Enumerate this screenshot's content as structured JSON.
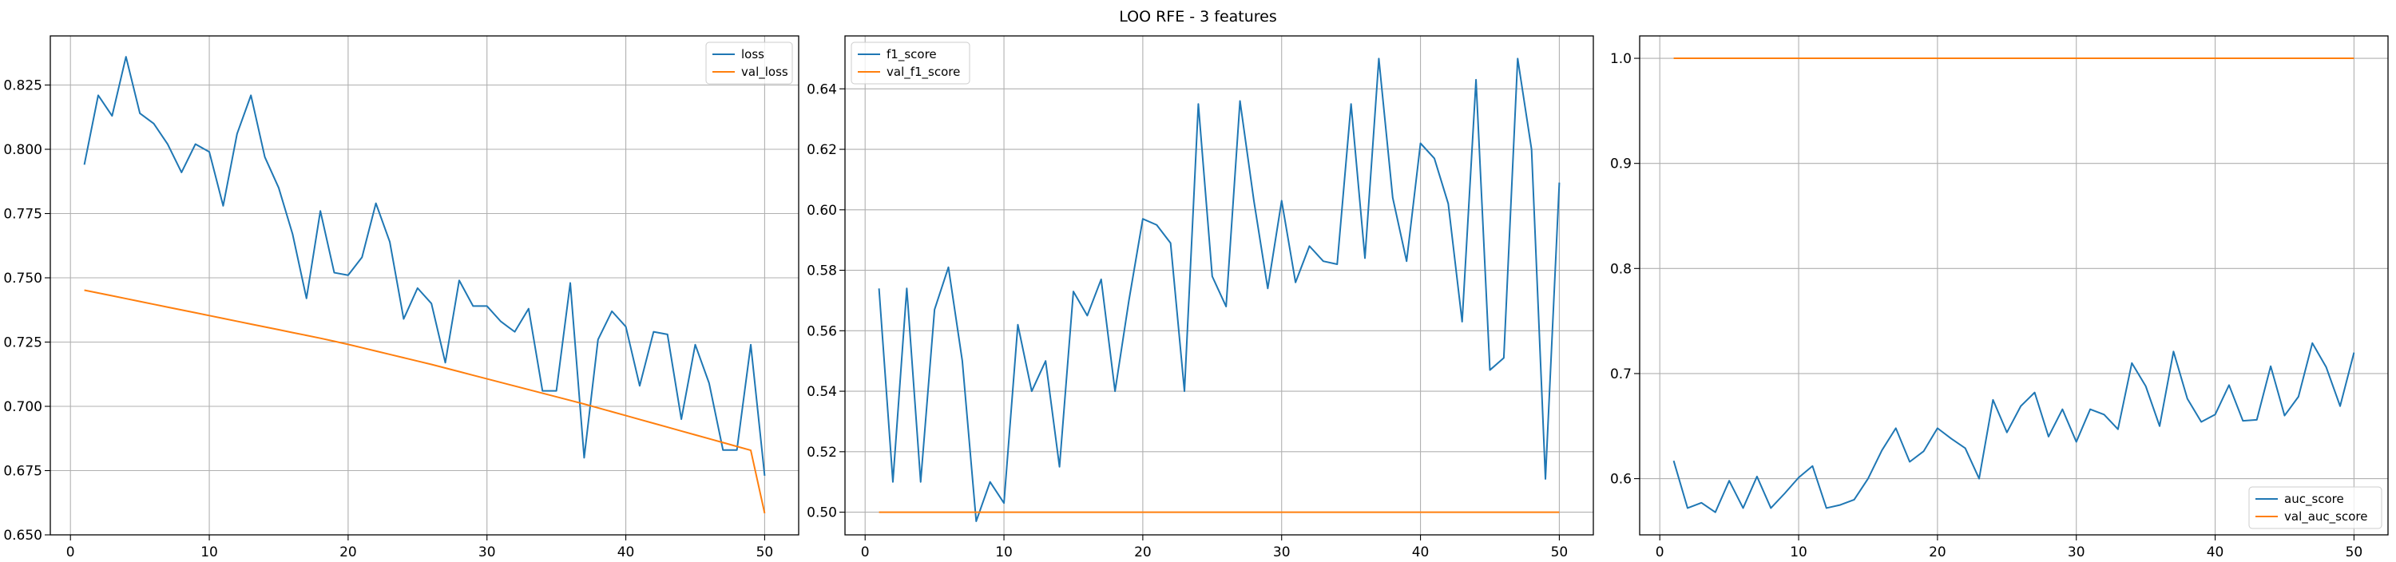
{
  "figure": {
    "suptitle": "LOO RFE - 3 features"
  },
  "colors": {
    "train": "#1f77b4",
    "val": "#ff7f0e",
    "grid": "#b0b0b0",
    "axis": "#000000"
  },
  "chart_data": [
    {
      "type": "line",
      "title": "",
      "xlabel": "",
      "ylabel": "",
      "xlim": [
        -1.45,
        52.45
      ],
      "ylim": [
        0.65,
        0.8441
      ],
      "xticks": [
        0,
        10,
        20,
        30,
        40,
        50
      ],
      "xtick_labels": [
        "0",
        "10",
        "20",
        "30",
        "40",
        "50"
      ],
      "yticks": [
        0.65,
        0.675,
        0.7,
        0.725,
        0.75,
        0.775,
        0.8,
        0.825
      ],
      "ytick_labels": [
        "0.650",
        "0.675",
        "0.700",
        "0.725",
        "0.750",
        "0.775",
        "0.800",
        "0.825"
      ],
      "grid": true,
      "legend_position": "upper right",
      "x": [
        1,
        2,
        3,
        4,
        5,
        6,
        7,
        8,
        9,
        10,
        11,
        12,
        13,
        14,
        15,
        16,
        17,
        18,
        19,
        20,
        21,
        22,
        23,
        24,
        25,
        26,
        27,
        28,
        29,
        30,
        31,
        32,
        33,
        34,
        35,
        36,
        37,
        38,
        39,
        40,
        41,
        42,
        43,
        44,
        45,
        46,
        47,
        48,
        49,
        50
      ],
      "series": [
        {
          "name": "loss",
          "color": "#1f77b4",
          "values": [
            0.794,
            0.821,
            0.813,
            0.836,
            0.814,
            0.81,
            0.802,
            0.791,
            0.802,
            0.799,
            0.778,
            0.806,
            0.821,
            0.797,
            0.785,
            0.767,
            0.742,
            0.776,
            0.752,
            0.751,
            0.758,
            0.779,
            0.764,
            0.734,
            0.746,
            0.74,
            0.717,
            0.749,
            0.739,
            0.739,
            0.733,
            0.729,
            0.738,
            0.706,
            0.706,
            0.748,
            0.68,
            0.726,
            0.737,
            0.731,
            0.708,
            0.729,
            0.728,
            0.695,
            0.724,
            0.709,
            0.683,
            0.683,
            0.724,
            0.673
          ]
        },
        {
          "name": "val_loss",
          "color": "#ff7f0e",
          "values": [
            0.7452,
            0.7441,
            0.743,
            0.7419,
            0.7408,
            0.7397,
            0.7386,
            0.7375,
            0.7364,
            0.7353,
            0.7342,
            0.7331,
            0.732,
            0.7309,
            0.7298,
            0.7287,
            0.7276,
            0.7265,
            0.7253,
            0.7241,
            0.7228,
            0.7215,
            0.7202,
            0.7189,
            0.7176,
            0.7163,
            0.7149,
            0.7135,
            0.7121,
            0.7107,
            0.7093,
            0.7079,
            0.7065,
            0.7051,
            0.7037,
            0.7023,
            0.7009,
            0.6994,
            0.6979,
            0.6964,
            0.6949,
            0.6934,
            0.6919,
            0.6904,
            0.6889,
            0.6874,
            0.6859,
            0.6844,
            0.6829,
            0.6584
          ]
        }
      ]
    },
    {
      "type": "line",
      "title": "",
      "xlabel": "",
      "ylabel": "",
      "xlim": [
        -1.45,
        52.45
      ],
      "ylim": [
        0.4925,
        0.6575
      ],
      "xticks": [
        0,
        10,
        20,
        30,
        40,
        50
      ],
      "xtick_labels": [
        "0",
        "10",
        "20",
        "30",
        "40",
        "50"
      ],
      "yticks": [
        0.5,
        0.52,
        0.54,
        0.56,
        0.58,
        0.6,
        0.62,
        0.64
      ],
      "ytick_labels": [
        "0.50",
        "0.52",
        "0.54",
        "0.56",
        "0.58",
        "0.60",
        "0.62",
        "0.64"
      ],
      "grid": true,
      "legend_position": "upper left",
      "x": [
        1,
        2,
        3,
        4,
        5,
        6,
        7,
        8,
        9,
        10,
        11,
        12,
        13,
        14,
        15,
        16,
        17,
        18,
        19,
        20,
        21,
        22,
        23,
        24,
        25,
        26,
        27,
        28,
        29,
        30,
        31,
        32,
        33,
        34,
        35,
        36,
        37,
        38,
        39,
        40,
        41,
        42,
        43,
        44,
        45,
        46,
        47,
        48,
        49,
        50
      ],
      "series": [
        {
          "name": "f1_score",
          "color": "#1f77b4",
          "values": [
            0.574,
            0.51,
            0.574,
            0.51,
            0.567,
            0.581,
            0.55,
            0.497,
            0.51,
            0.503,
            0.562,
            0.54,
            0.55,
            0.515,
            0.573,
            0.565,
            0.577,
            0.54,
            0.57,
            0.597,
            0.595,
            0.589,
            0.54,
            0.635,
            0.578,
            0.568,
            0.636,
            0.603,
            0.574,
            0.603,
            0.576,
            0.588,
            0.583,
            0.582,
            0.635,
            0.584,
            0.65,
            0.604,
            0.583,
            0.622,
            0.617,
            0.602,
            0.563,
            0.643,
            0.547,
            0.551,
            0.65,
            0.62,
            0.511,
            0.609
          ]
        },
        {
          "name": "val_f1_score",
          "color": "#ff7f0e",
          "values": [
            0.5,
            0.5,
            0.5,
            0.5,
            0.5,
            0.5,
            0.5,
            0.5,
            0.5,
            0.5,
            0.5,
            0.5,
            0.5,
            0.5,
            0.5,
            0.5,
            0.5,
            0.5,
            0.5,
            0.5,
            0.5,
            0.5,
            0.5,
            0.5,
            0.5,
            0.5,
            0.5,
            0.5,
            0.5,
            0.5,
            0.5,
            0.5,
            0.5,
            0.5,
            0.5,
            0.5,
            0.5,
            0.5,
            0.5,
            0.5,
            0.5,
            0.5,
            0.5,
            0.5,
            0.5,
            0.5,
            0.5,
            0.5,
            0.5,
            0.5
          ]
        }
      ]
    },
    {
      "type": "line",
      "title": "",
      "xlabel": "",
      "ylabel": "",
      "xlim": [
        -1.45,
        52.45
      ],
      "ylim": [
        0.5465,
        1.0213
      ],
      "xticks": [
        0,
        10,
        20,
        30,
        40,
        50
      ],
      "xtick_labels": [
        "0",
        "10",
        "20",
        "30",
        "40",
        "50"
      ],
      "yticks": [
        0.6,
        0.7,
        0.8,
        0.9,
        1.0
      ],
      "ytick_labels": [
        "0.6",
        "0.7",
        "0.8",
        "0.9",
        "1.0"
      ],
      "grid": true,
      "legend_position": "lower right",
      "x": [
        1,
        2,
        3,
        4,
        5,
        6,
        7,
        8,
        9,
        10,
        11,
        12,
        13,
        14,
        15,
        16,
        17,
        18,
        19,
        20,
        21,
        22,
        23,
        24,
        25,
        26,
        27,
        28,
        29,
        30,
        31,
        32,
        33,
        34,
        35,
        36,
        37,
        38,
        39,
        40,
        41,
        42,
        43,
        44,
        45,
        46,
        47,
        48,
        49,
        50
      ],
      "series": [
        {
          "name": "auc_score",
          "color": "#1f77b4",
          "values": [
            0.617,
            0.572,
            0.577,
            0.568,
            0.598,
            0.572,
            0.602,
            0.572,
            0.586,
            0.601,
            0.612,
            0.572,
            0.575,
            0.58,
            0.6,
            0.627,
            0.648,
            0.616,
            0.626,
            0.648,
            0.638,
            0.629,
            0.6,
            0.675,
            0.644,
            0.669,
            0.682,
            0.64,
            0.666,
            0.635,
            0.666,
            0.661,
            0.647,
            0.71,
            0.688,
            0.65,
            0.721,
            0.676,
            0.654,
            0.661,
            0.689,
            0.655,
            0.656,
            0.707,
            0.66,
            0.678,
            0.729,
            0.706,
            0.669,
            0.72
          ]
        },
        {
          "name": "val_auc_score",
          "color": "#ff7f0e",
          "values": [
            1.0,
            1.0,
            1.0,
            1.0,
            1.0,
            1.0,
            1.0,
            1.0,
            1.0,
            1.0,
            1.0,
            1.0,
            1.0,
            1.0,
            1.0,
            1.0,
            1.0,
            1.0,
            1.0,
            1.0,
            1.0,
            1.0,
            1.0,
            1.0,
            1.0,
            1.0,
            1.0,
            1.0,
            1.0,
            1.0,
            1.0,
            1.0,
            1.0,
            1.0,
            1.0,
            1.0,
            1.0,
            1.0,
            1.0,
            1.0,
            1.0,
            1.0,
            1.0,
            1.0,
            1.0,
            1.0,
            1.0,
            1.0,
            1.0,
            1.0
          ]
        }
      ]
    }
  ]
}
